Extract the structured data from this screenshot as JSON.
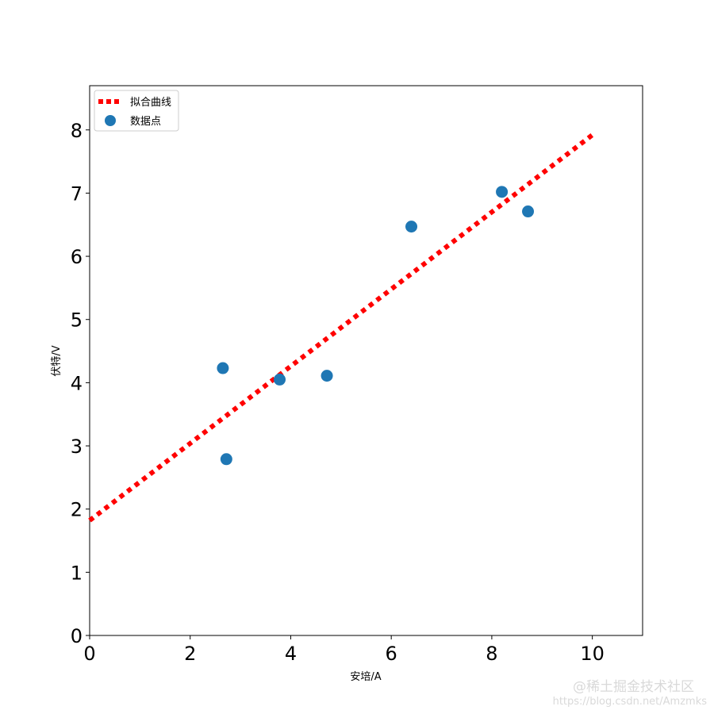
{
  "chart_data": {
    "type": "scatter",
    "xlabel": "安培/A",
    "ylabel": "伏特/V",
    "xlim": [
      0,
      11
    ],
    "ylim": [
      0,
      8.7
    ],
    "xticks": [
      0,
      2,
      4,
      6,
      8,
      10
    ],
    "yticks": [
      0,
      1,
      2,
      3,
      4,
      5,
      6,
      7,
      8
    ],
    "grid": false,
    "legend_position": "top-left",
    "series": [
      {
        "name": "拟合曲线",
        "kind": "line",
        "style": "dotted",
        "color": "#ff0000",
        "x": [
          0,
          10
        ],
        "y": [
          1.82,
          7.92
        ]
      },
      {
        "name": "数据点",
        "kind": "scatter",
        "color": "#1f77b4",
        "x": [
          2.65,
          2.72,
          3.78,
          4.72,
          6.4,
          8.2,
          8.72
        ],
        "y": [
          4.23,
          2.79,
          4.05,
          4.11,
          6.47,
          7.02,
          6.71
        ]
      }
    ]
  },
  "watermark": {
    "line1": "@稀土掘金技术社区",
    "line2": "https://blog.csdn.net/Amzmks"
  }
}
